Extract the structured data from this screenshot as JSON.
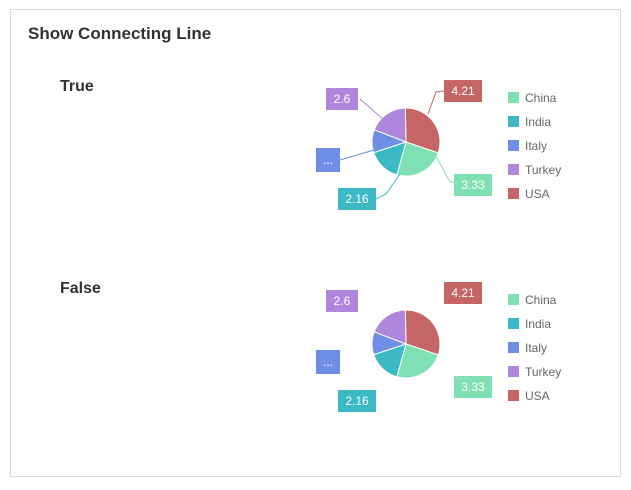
{
  "page": {
    "title": "Show Connecting Line"
  },
  "colors": {
    "China": "#7fe0b4",
    "India": "#3bb9c5",
    "Italy": "#6f8fe6",
    "Turkey": "#ae86dc",
    "USA": "#c56565"
  },
  "chart_data": [
    {
      "type": "pie",
      "title": "True",
      "connecting_line": true,
      "categories": [
        "China",
        "India",
        "Italy",
        "Turkey",
        "USA"
      ],
      "values": [
        3.33,
        2.16,
        1.5,
        2.6,
        4.21
      ],
      "data_labels": [
        "3.33",
        "2.16",
        "...",
        "2.6",
        "4.21"
      ],
      "legend": "right"
    },
    {
      "type": "pie",
      "title": "False",
      "connecting_line": false,
      "categories": [
        "China",
        "India",
        "Italy",
        "Turkey",
        "USA"
      ],
      "values": [
        3.33,
        2.16,
        1.5,
        2.6,
        4.21
      ],
      "data_labels": [
        "3.33",
        "2.16",
        "...",
        "2.6",
        "4.21"
      ],
      "legend": "right"
    }
  ]
}
